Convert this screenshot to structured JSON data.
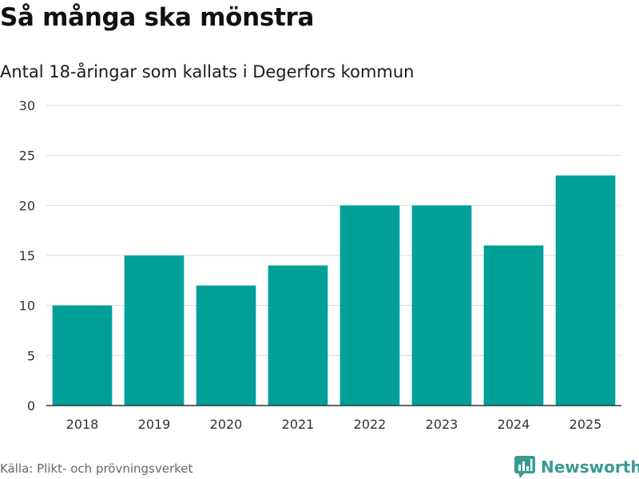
{
  "brand": {
    "name": "Newsworthy",
    "color": "#3a9b93"
  },
  "footer": {
    "source": "Källa: Plikt- och prövningsverket"
  },
  "chart_data": {
    "type": "bar",
    "title": "Så många ska mönstra",
    "subtitle": "Antal 18-åringar som kallats i Degerfors kommun",
    "xlabel": "",
    "ylabel": "",
    "categories": [
      "2018",
      "2019",
      "2020",
      "2021",
      "2022",
      "2023",
      "2024",
      "2025"
    ],
    "values": [
      10,
      15,
      12,
      14,
      20,
      20,
      16,
      23
    ],
    "ylim": [
      0,
      30
    ],
    "yticks": [
      0,
      5,
      10,
      15,
      20,
      25,
      30
    ],
    "grid": true,
    "bar_color": "#00a099",
    "grid_color": "#dcdcdc",
    "axis_color": "#333333"
  }
}
